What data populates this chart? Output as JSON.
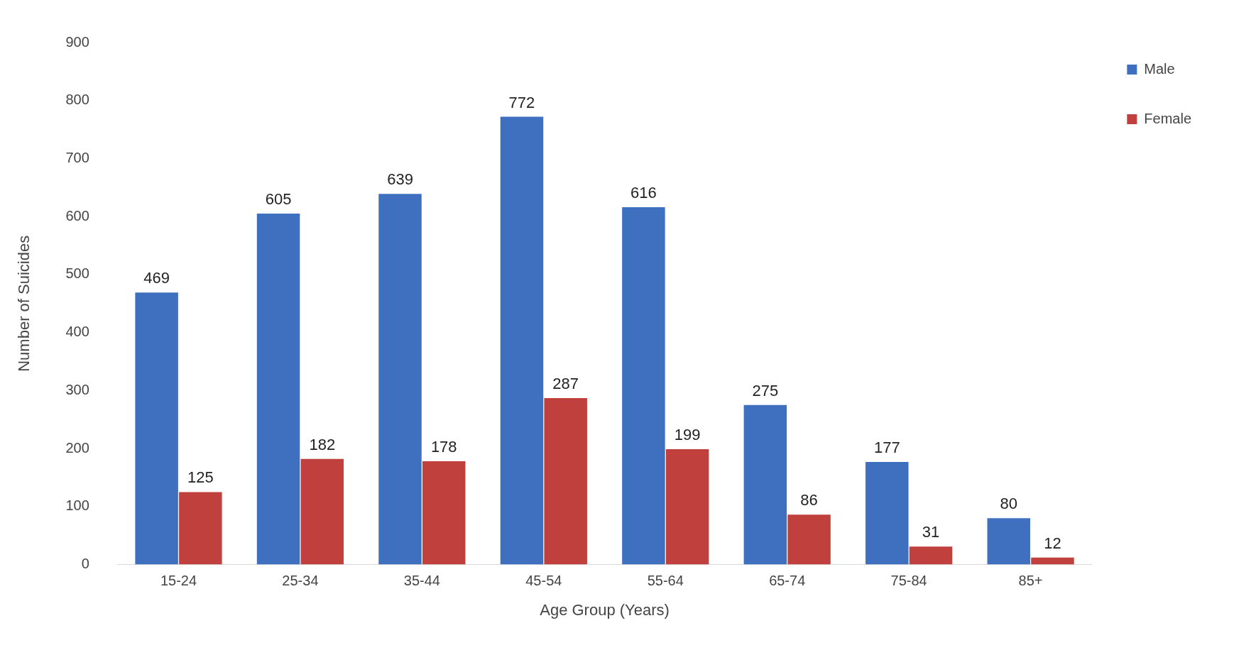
{
  "chart_data": {
    "type": "bar",
    "xlabel": "Age Group (Years)",
    "ylabel": "Number of Suicides",
    "categories": [
      "15-24",
      "25-34",
      "35-44",
      "45-54",
      "55-64",
      "65-74",
      "75-84",
      "85+"
    ],
    "series": [
      {
        "name": "Male",
        "color": "#3f6fbf",
        "values": [
          469,
          605,
          639,
          772,
          616,
          275,
          177,
          80
        ]
      },
      {
        "name": "Female",
        "color": "#c0403d",
        "values": [
          125,
          182,
          178,
          287,
          199,
          86,
          31,
          12
        ]
      }
    ],
    "ylim": [
      0,
      900
    ],
    "yticks": [
      0,
      100,
      200,
      300,
      400,
      500,
      600,
      700,
      800,
      900
    ],
    "data_labels": true,
    "legend": "top right",
    "grid": false
  }
}
